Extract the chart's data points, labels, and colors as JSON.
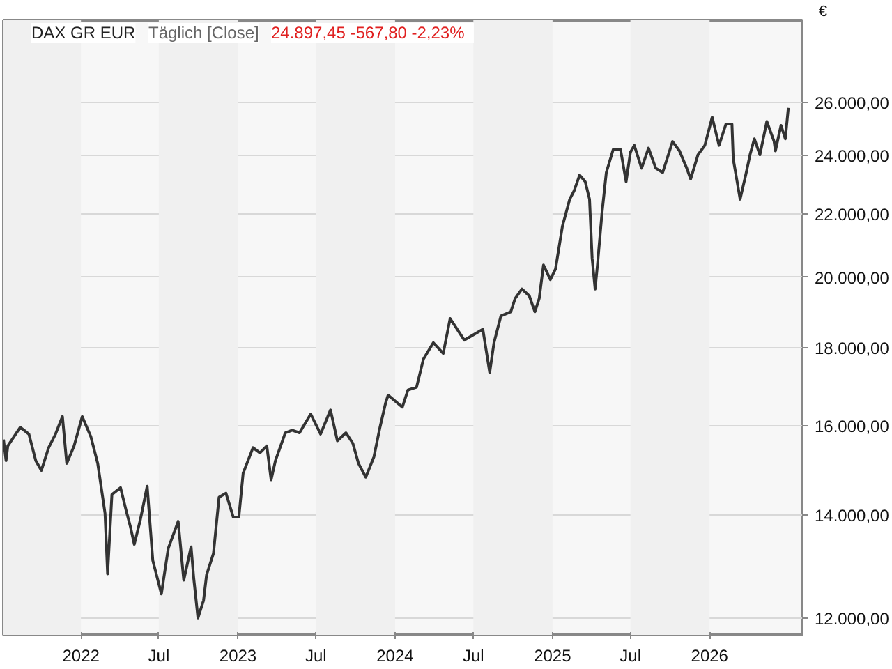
{
  "chart_data": {
    "type": "line",
    "title": "DAX GR EUR",
    "subtitle": "Täglich [Close]",
    "annotations": [
      "24.897,45  -567,80  -2,23%"
    ],
    "ylabel": "€",
    "log": true,
    "grid": "y",
    "line_style": "solid",
    "xlim": [
      "2021-07-05",
      "2026-08-04"
    ],
    "ylim": [
      11700,
      29400
    ],
    "xticks": [
      {
        "value": "2022-01-01",
        "label": "2022"
      },
      {
        "value": "2022-07-01",
        "label": "Jul"
      },
      {
        "value": "2023-01-01",
        "label": "2023"
      },
      {
        "value": "2023-07-01",
        "label": "Jul"
      },
      {
        "value": "2024-01-01",
        "label": "2024"
      },
      {
        "value": "2024-07-01",
        "label": "Jul"
      },
      {
        "value": "2025-01-01",
        "label": "2025"
      },
      {
        "value": "2025-07-01",
        "label": "Jul"
      },
      {
        "value": "2026-01-01",
        "label": "2026"
      }
    ],
    "yticks": [
      {
        "value": 12000,
        "label": "12.000,00"
      },
      {
        "value": 14000,
        "label": "14.000,00"
      },
      {
        "value": 16000,
        "label": "16.000,00"
      },
      {
        "value": 18000,
        "label": "18.000,00"
      },
      {
        "value": 20000,
        "label": "20.000,00"
      },
      {
        "value": 22000,
        "label": "22.000,00"
      },
      {
        "value": 24000,
        "label": "24.000,00"
      },
      {
        "value": 26000,
        "label": "26.000,00"
      }
    ],
    "bands": [
      {
        "axis": "x",
        "from": "2021-07-05",
        "to": "2022-01-01",
        "color": "#f0f0f0"
      },
      {
        "axis": "x",
        "from": "2022-07-01",
        "to": "2023-01-01",
        "color": "#f0f0f0"
      },
      {
        "axis": "x",
        "from": "2023-07-01",
        "to": "2024-01-01",
        "color": "#f0f0f0"
      },
      {
        "axis": "x",
        "from": "2024-07-01",
        "to": "2025-01-01",
        "color": "#f0f0f0"
      },
      {
        "axis": "x",
        "from": "2025-07-01",
        "to": "2026-01-01",
        "color": "#f0f0f0"
      }
    ],
    "series": [
      {
        "color": "#333333",
        "x": [
          "2021-07-05",
          "2021-07-11",
          "2021-07-15",
          "2021-08-13",
          "2021-09-02",
          "2021-09-18",
          "2021-10-01",
          "2021-10-18",
          "2021-11-03",
          "2021-11-19",
          "2021-11-29",
          "2021-12-16",
          "2022-01-04",
          "2022-01-24",
          "2022-02-09",
          "2022-02-26",
          "2022-03-04",
          "2022-03-14",
          "2022-04-03",
          "2022-04-16",
          "2022-04-26",
          "2022-05-05",
          "2022-05-19",
          "2022-06-04",
          "2022-06-17",
          "2022-07-07",
          "2022-07-23",
          "2022-08-15",
          "2022-08-28",
          "2022-09-14",
          "2022-09-20",
          "2022-09-30",
          "2022-10-13",
          "2022-10-20",
          "2022-11-05",
          "2022-11-18",
          "2022-12-04",
          "2022-12-21",
          "2023-01-03",
          "2023-01-13",
          "2023-02-05",
          "2023-02-21",
          "2023-03-09",
          "2023-03-19",
          "2023-03-29",
          "2023-04-21",
          "2023-05-07",
          "2023-05-24",
          "2023-06-19",
          "2023-07-12",
          "2023-08-04",
          "2023-08-20",
          "2023-09-09",
          "2023-09-25",
          "2023-10-08",
          "2023-10-25",
          "2023-11-13",
          "2023-11-27",
          "2023-12-10",
          "2023-12-16",
          "2024-01-18",
          "2024-01-31",
          "2024-02-20",
          "2024-03-07",
          "2024-03-30",
          "2024-04-22",
          "2024-05-08",
          "2024-06-10",
          "2024-07-23",
          "2024-08-08",
          "2024-08-18",
          "2024-09-03",
          "2024-09-26",
          "2024-10-06",
          "2024-10-22",
          "2024-11-08",
          "2024-11-21",
          "2024-12-01",
          "2024-12-11",
          "2024-12-27",
          "2025-01-08",
          "2025-01-24",
          "2025-02-10",
          "2025-02-20",
          "2025-03-05",
          "2025-03-18",
          "2025-03-28",
          "2025-04-03",
          "2025-04-10",
          "2025-04-16",
          "2025-04-26",
          "2025-05-06",
          "2025-05-22",
          "2025-06-08",
          "2025-06-21",
          "2025-07-01",
          "2025-07-10",
          "2025-07-27",
          "2025-08-12",
          "2025-08-29",
          "2025-09-14",
          "2025-10-07",
          "2025-10-23",
          "2025-11-09",
          "2025-11-18",
          "2025-12-05",
          "2025-12-21",
          "2026-01-07",
          "2026-01-23",
          "2026-02-08",
          "2026-02-22",
          "2026-02-25",
          "2026-03-13",
          "2026-03-26",
          "2026-04-05",
          "2026-04-15",
          "2026-04-28",
          "2026-05-14",
          "2026-05-31",
          "2026-06-03",
          "2026-06-16",
          "2026-06-26",
          "2026-07-03"
        ],
        "values": [
          15680,
          15190,
          15530,
          15970,
          15810,
          15190,
          14970,
          15490,
          15810,
          16230,
          15130,
          15530,
          16230,
          15750,
          15130,
          14040,
          12820,
          14440,
          14590,
          14100,
          13760,
          13400,
          13900,
          14620,
          13080,
          12440,
          13320,
          13870,
          12700,
          13350,
          12750,
          12000,
          12320,
          12800,
          13220,
          14380,
          14470,
          13960,
          13960,
          14910,
          15490,
          15370,
          15530,
          14760,
          15190,
          15840,
          15900,
          15840,
          16290,
          15810,
          16390,
          15650,
          15840,
          15590,
          15130,
          14820,
          15280,
          15970,
          16560,
          16760,
          16460,
          16890,
          16960,
          17690,
          18130,
          17840,
          18800,
          18200,
          18500,
          17340,
          18130,
          18870,
          18990,
          19370,
          19650,
          19450,
          18990,
          19370,
          20370,
          19930,
          20250,
          21590,
          22480,
          22760,
          23310,
          23080,
          22480,
          20580,
          19650,
          20450,
          22030,
          23400,
          24220,
          24220,
          23080,
          24120,
          24370,
          23550,
          24270,
          23550,
          23400,
          24510,
          24170,
          23550,
          23170,
          24030,
          24370,
          25420,
          24370,
          25160,
          25160,
          23880,
          22480,
          23310,
          24030,
          24610,
          24030,
          25260,
          24510,
          24170,
          25110,
          24610,
          25780
        ]
      }
    ]
  }
}
